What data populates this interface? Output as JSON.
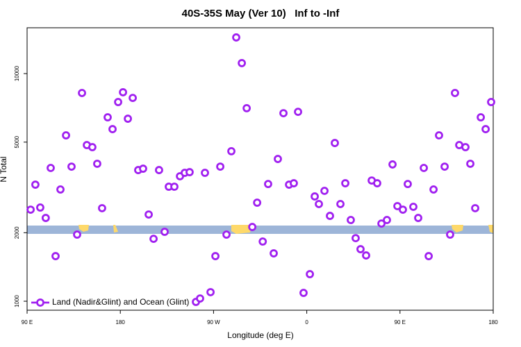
{
  "chart_data": {
    "type": "scatter",
    "title": "40S-35S May (Ver 10)   Inf to -Inf",
    "x_label": "Longitude (deg E)",
    "y_label": "N Total",
    "xlim": [
      90,
      540
    ],
    "ylim": [
      913,
      15900
    ],
    "y_log": true,
    "grid": false,
    "legend": "bottom-left",
    "xticks": [
      {
        "value": 90,
        "label": "90 E"
      },
      180,
      {
        "value": 270,
        "label": "90 W"
      },
      {
        "value": 360,
        "label": "0"
      },
      {
        "value": 450,
        "label": "90 E"
      },
      {
        "value": 540,
        "label": "180"
      }
    ],
    "yticks": [
      1000,
      2000,
      5000,
      10000
    ],
    "x": [
      93.4,
      98,
      102.7,
      108,
      112.8,
      117.5,
      122.2,
      127.6,
      132.9,
      138.3,
      143,
      147.7,
      153,
      157.7,
      162.4,
      167.8,
      172.5,
      177.9,
      182.6,
      187.3,
      192,
      197.3,
      202,
      207.4,
      212.1,
      217.4,
      222.8,
      226.8,
      232.2,
      237.6,
      242.2,
      246.9,
      253,
      257,
      261.7,
      267.1,
      271.8,
      276.5,
      282.5,
      287.2,
      291.9,
      297.3,
      302,
      307.4,
      312.1,
      317.5,
      322.7,
      328.1,
      332.1,
      337.5,
      342.9,
      347.5,
      351.6,
      356.9,
      363,
      367.7,
      371.7,
      377.1,
      382.4,
      387.1,
      392.5,
      397.2,
      402.5,
      407.2,
      411.9,
      417.3,
      422.7,
      428,
      432.1,
      437.4,
      442.8,
      447.5,
      452.8,
      457.5,
      462.9,
      467.6,
      473,
      477.7,
      482.4,
      487.7,
      493.1,
      498.4,
      503.1,
      507.2,
      513.2,
      517.9,
      522.6,
      528,
      532.7,
      538
    ],
    "series": [
      {
        "name": "Land (Nadir&Glint) and Ocean (Glint)",
        "color": "#a020f0",
        "values": [
          2525,
          3252,
          2580,
          2322,
          3850,
          1578,
          3097,
          5355,
          3902,
          1962,
          8219,
          4853,
          4752,
          4017,
          2563,
          6427,
          5702,
          7500,
          8279,
          6336,
          7818,
          3768,
          3822,
          2404,
          1880,
          3768,
          2018,
          3185,
          3185,
          3540,
          3665,
          3690,
          993,
          1028,
          3665,
          1096,
          1578,
          3902,
          1962,
          4560,
          14420,
          11120,
          7047,
          2119,
          2710,
          1829,
          3273,
          1623,
          4217,
          6700,
          3252,
          3298,
          6793,
          1088,
          1315,
          2886,
          2673,
          3054,
          2371,
          4955,
          2673,
          3298,
          2274,
          1893,
          1693,
          1589,
          3391,
          3298,
          2194,
          2274,
          3990,
          2617,
          2525,
          3273,
          2599,
          2322,
          3850,
          1578,
          3097,
          5355,
          3902,
          1962,
          8219,
          4853,
          4752,
          4017,
          2563,
          6427,
          5702,
          7500
        ]
      }
    ]
  }
}
